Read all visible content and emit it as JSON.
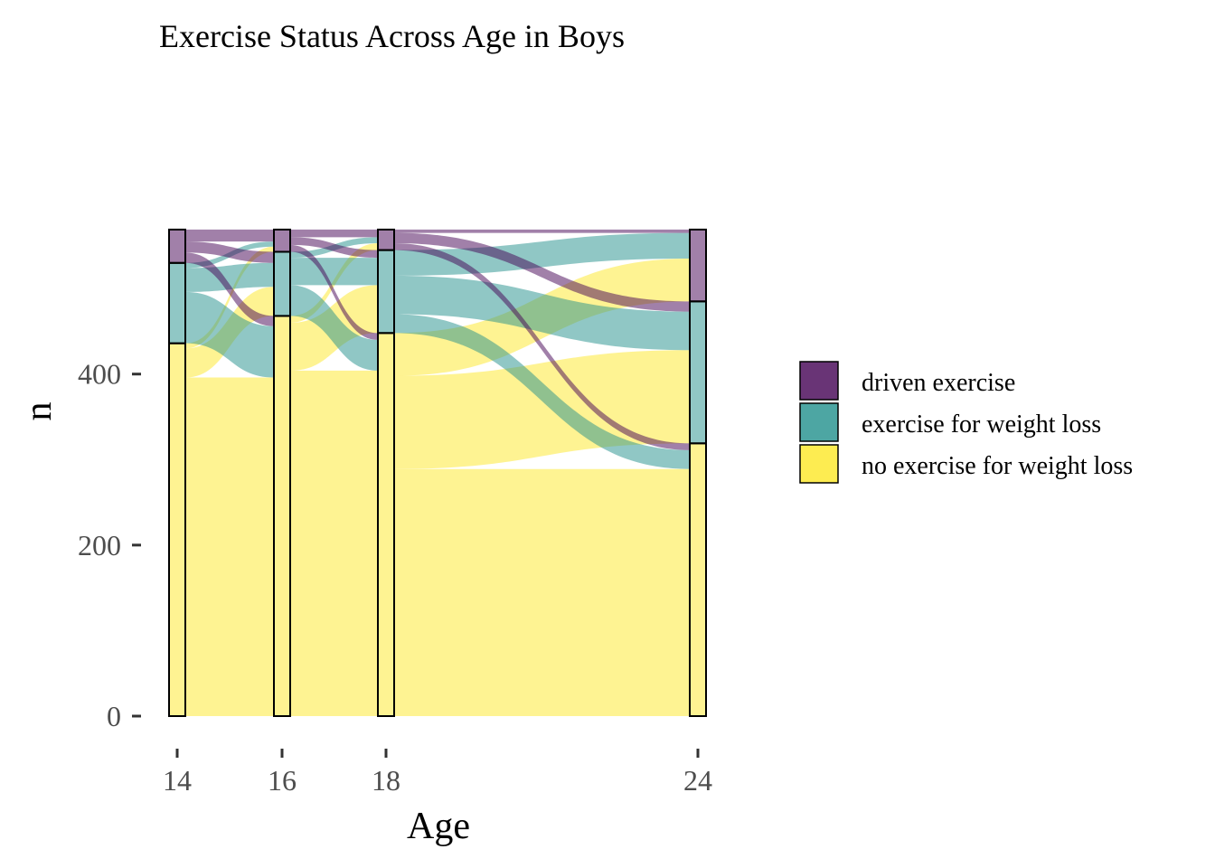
{
  "chart_data": {
    "type": "alluvial",
    "title": "Exercise Status Across Age in Boys",
    "xlabel": "Age",
    "ylabel": "n",
    "x": [
      14,
      16,
      18,
      24
    ],
    "x_tick_labels": [
      "14",
      "16",
      "18",
      "24"
    ],
    "y_ticks": [
      0,
      200,
      400
    ],
    "y_tick_labels": [
      "0",
      "200",
      "400"
    ],
    "ylim": [
      0,
      570
    ],
    "legend_position": "right",
    "categories": [
      "no exercise for weight loss",
      "exercise for weight loss",
      "driven exercise"
    ],
    "colors": {
      "driven exercise": "#440154",
      "exercise for weight loss": "#21908C",
      "no exercise for weight loss": "#FDE725"
    },
    "stratum_counts": {
      "14": {
        "no exercise for weight loss": 436,
        "exercise for weight loss": 94,
        "driven exercise": 39
      },
      "16": {
        "no exercise for weight loss": 468,
        "exercise for weight loss": 75,
        "driven exercise": 26
      },
      "18": {
        "no exercise for weight loss": 448,
        "exercise for weight loss": 97,
        "driven exercise": 24
      },
      "24": {
        "no exercise for weight loss": 319,
        "exercise for weight loss": 166,
        "driven exercise": 84
      }
    },
    "transitions": [
      {
        "from_age": 14,
        "to_age": 16,
        "flows": [
          {
            "from": "no exercise for weight loss",
            "to": "no exercise for weight loss",
            "value": 396
          },
          {
            "from": "no exercise for weight loss",
            "to": "exercise for weight loss",
            "value": 34
          },
          {
            "from": "no exercise for weight loss",
            "to": "driven exercise",
            "value": 6
          },
          {
            "from": "exercise for weight loss",
            "to": "no exercise for weight loss",
            "value": 60
          },
          {
            "from": "exercise for weight loss",
            "to": "exercise for weight loss",
            "value": 28
          },
          {
            "from": "exercise for weight loss",
            "to": "driven exercise",
            "value": 6
          },
          {
            "from": "driven exercise",
            "to": "no exercise for weight loss",
            "value": 12
          },
          {
            "from": "driven exercise",
            "to": "exercise for weight loss",
            "value": 13
          },
          {
            "from": "driven exercise",
            "to": "driven exercise",
            "value": 14
          }
        ]
      },
      {
        "from_age": 16,
        "to_age": 18,
        "flows": [
          {
            "from": "no exercise for weight loss",
            "to": "no exercise for weight loss",
            "value": 404
          },
          {
            "from": "no exercise for weight loss",
            "to": "exercise for weight loss",
            "value": 56
          },
          {
            "from": "no exercise for weight loss",
            "to": "driven exercise",
            "value": 8
          },
          {
            "from": "exercise for weight loss",
            "to": "no exercise for weight loss",
            "value": 36
          },
          {
            "from": "exercise for weight loss",
            "to": "exercise for weight loss",
            "value": 32
          },
          {
            "from": "exercise for weight loss",
            "to": "driven exercise",
            "value": 7
          },
          {
            "from": "driven exercise",
            "to": "no exercise for weight loss",
            "value": 8
          },
          {
            "from": "driven exercise",
            "to": "exercise for weight loss",
            "value": 9
          },
          {
            "from": "driven exercise",
            "to": "driven exercise",
            "value": 9
          }
        ]
      },
      {
        "from_age": 18,
        "to_age": 24,
        "flows": [
          {
            "from": "no exercise for weight loss",
            "to": "no exercise for weight loss",
            "value": 289
          },
          {
            "from": "no exercise for weight loss",
            "to": "exercise for weight loss",
            "value": 109
          },
          {
            "from": "no exercise for weight loss",
            "to": "driven exercise",
            "value": 50
          },
          {
            "from": "exercise for weight loss",
            "to": "no exercise for weight loss",
            "value": 22
          },
          {
            "from": "exercise for weight loss",
            "to": "exercise for weight loss",
            "value": 45
          },
          {
            "from": "exercise for weight loss",
            "to": "driven exercise",
            "value": 30
          },
          {
            "from": "driven exercise",
            "to": "no exercise for weight loss",
            "value": 8
          },
          {
            "from": "driven exercise",
            "to": "exercise for weight loss",
            "value": 12
          },
          {
            "from": "driven exercise",
            "to": "driven exercise",
            "value": 4
          }
        ]
      }
    ],
    "legend": [
      "driven exercise",
      "exercise for weight loss",
      "no exercise for weight loss"
    ]
  }
}
